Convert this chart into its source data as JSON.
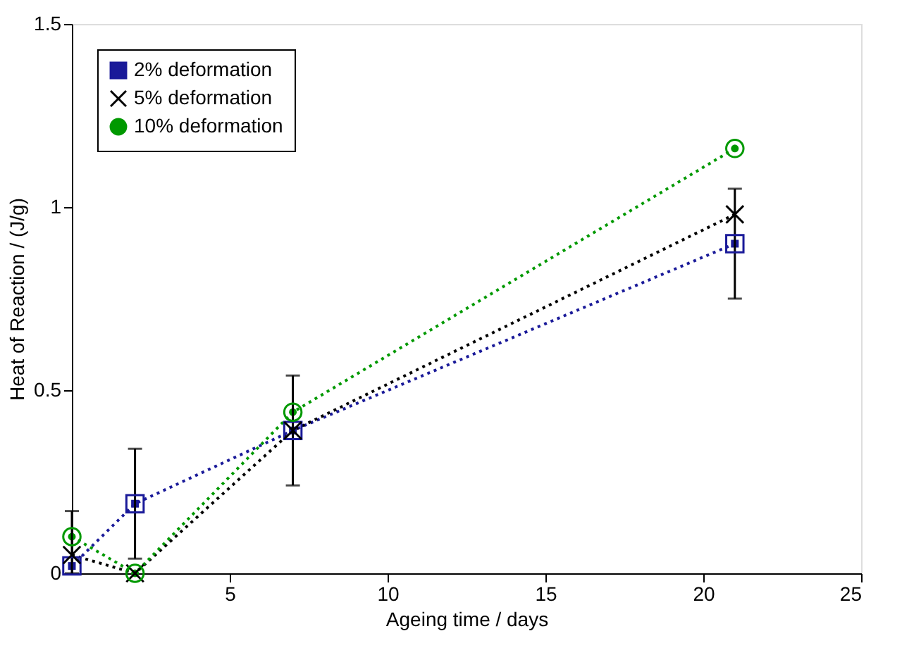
{
  "chart_data": {
    "type": "line",
    "xlabel": "Ageing time / days",
    "ylabel": "Heat of Reaction / (J/g)",
    "x": [
      0,
      2,
      7,
      21
    ],
    "xlim": [
      0,
      25
    ],
    "xticks": [
      5,
      10,
      15,
      20,
      25
    ],
    "ylim": [
      0,
      1.5
    ],
    "yticks": [
      0,
      0.5,
      1,
      1.5
    ],
    "grid": false,
    "legend": "top left",
    "line_style": "dotted",
    "series": [
      {
        "name": "2% deformation",
        "color": "#1a1a99",
        "marker": "square",
        "values": [
          0.02,
          0.19,
          0.39,
          0.9
        ],
        "errors": [
          [
            0,
            0.17
          ],
          [
            0.04,
            0.34
          ],
          [
            0.24,
            0.54
          ],
          [
            0.75,
            1.05
          ]
        ]
      },
      {
        "name": "5% deformation",
        "color": "#000000",
        "marker": "cross",
        "values": [
          0.05,
          0.0,
          0.39,
          0.98
        ]
      },
      {
        "name": "10% deformation",
        "color": "#009900",
        "marker": "circle",
        "values": [
          0.1,
          0.0,
          0.44,
          1.16
        ]
      }
    ]
  }
}
